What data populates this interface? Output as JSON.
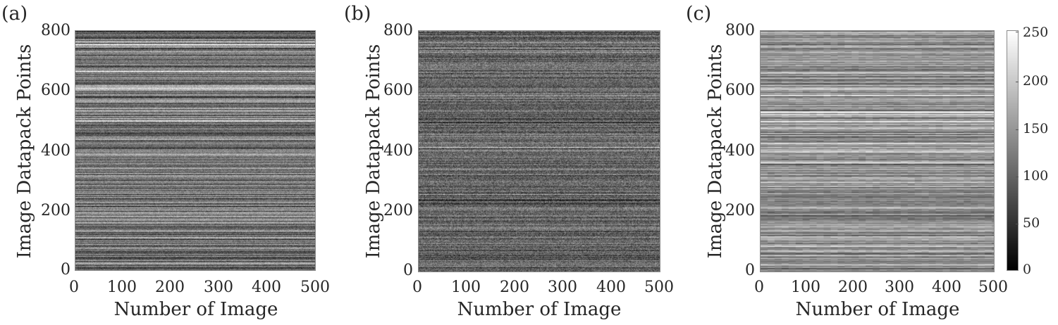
{
  "chart_data": [
    {
      "type": "heatmap",
      "panel": "(a)",
      "title": "",
      "xlabel": "Number of Image",
      "ylabel": "Image Datapack Points",
      "xlim": [
        0,
        500
      ],
      "ylim": [
        0,
        800
      ],
      "xticks": [
        "0",
        "100",
        "200",
        "300",
        "400",
        "500"
      ],
      "yticks": [
        "0",
        "200",
        "400",
        "600",
        "800"
      ],
      "colormap": "gray",
      "description": "Horizontal stripes: each row (datapack point) has a roughly constant intensity across images with fine per-pixel noise; mid-gray, high-contrast stripes.",
      "render": {
        "seed": 11,
        "base": 120,
        "row_spread": 70,
        "noise": 28,
        "col_block": 1
      }
    },
    {
      "type": "heatmap",
      "panel": "(b)",
      "title": "",
      "xlabel": "Number of Image",
      "ylabel": "Image Datapack Points",
      "xlim": [
        0,
        500
      ],
      "ylim": [
        0,
        800
      ],
      "xticks": [
        "0",
        "100",
        "200",
        "300",
        "400",
        "500"
      ],
      "yticks": [
        "0",
        "200",
        "400",
        "600",
        "800"
      ],
      "colormap": "gray",
      "description": "Horizontal stripes with strong per-pixel noise, darker overall with lower row contrast.",
      "render": {
        "seed": 23,
        "base": 100,
        "row_spread": 35,
        "noise": 40,
        "col_block": 1
      }
    },
    {
      "type": "heatmap",
      "panel": "(c)",
      "title": "",
      "xlabel": "Number of Image",
      "ylabel": "Image Datapack Points",
      "xlim": [
        0,
        500
      ],
      "ylim": [
        0,
        800
      ],
      "xticks": [
        "0",
        "100",
        "200",
        "300",
        "400",
        "500"
      ],
      "yticks": [
        "0",
        "200",
        "400",
        "600",
        "800"
      ],
      "colormap": "gray",
      "colorbar": {
        "range": [
          0,
          255
        ],
        "ticks": [
          "0",
          "50",
          "100",
          "150",
          "200",
          "250"
        ]
      },
      "description": "Horizontal stripes with blocky columns (~10 images per block), lighter overall gray.",
      "render": {
        "seed": 37,
        "base": 150,
        "row_spread": 55,
        "noise": 18,
        "col_block": 10
      }
    }
  ],
  "panels": [
    {
      "label": "(a)",
      "xlabel": "Number of Image",
      "ylabel": "Image Datapack Points"
    },
    {
      "label": "(b)",
      "xlabel": "Number of Image",
      "ylabel": "Image Datapack Points"
    },
    {
      "label": "(c)",
      "xlabel": "Number of Image",
      "ylabel": "Image Datapack Points"
    }
  ],
  "axes": {
    "xticks": [
      "0",
      "100",
      "200",
      "300",
      "400",
      "500"
    ],
    "yticks": [
      "0",
      "200",
      "400",
      "600",
      "800"
    ]
  },
  "colorbar": {
    "ticks": [
      "0",
      "50",
      "100",
      "150",
      "200",
      "250"
    ]
  }
}
